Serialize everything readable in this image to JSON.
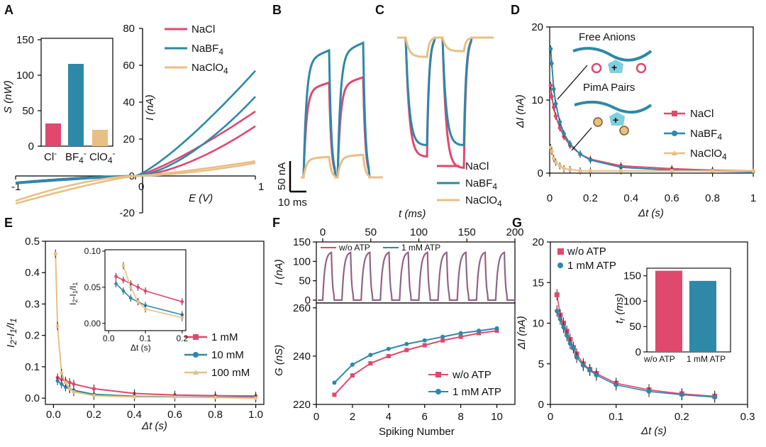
{
  "colors": {
    "red": "#e0486e",
    "blue": "#2e88a8",
    "tan": "#e8bf85"
  },
  "panel_labels": {
    "A": "A",
    "B": "B",
    "C": "C",
    "D": "D",
    "E": "E",
    "F": "F",
    "G": "G"
  },
  "chart_data": [
    {
      "id": "A",
      "type": "line",
      "xlabel": "E (V)",
      "ylabel": "I (nA)",
      "xlim": [
        -1,
        1
      ],
      "ylim": [
        -20,
        80
      ],
      "xticks": [
        "-1",
        "0",
        "1"
      ],
      "yticks": [
        "-20",
        "0",
        "20",
        "40",
        "60",
        "80"
      ],
      "series": [
        {
          "name": "NaCl",
          "color": "red",
          "upper_end": 35,
          "lower_end": 27,
          "neg_end": -4
        },
        {
          "name": "NaBF4",
          "color": "blue",
          "upper_end": 57,
          "lower_end": 43,
          "neg_end": -4
        },
        {
          "name": "NaClO4",
          "color": "tan",
          "upper_end": 8,
          "lower_end": 7,
          "neg_end": -15
        }
      ],
      "legend": [
        "NaCl",
        "NaBF",
        "NaClO"
      ]
    },
    {
      "id": "A-inset",
      "type": "bar",
      "ylabel": "S (nW)",
      "ylim": [
        0,
        150
      ],
      "yticks": [
        "0",
        "50",
        "100",
        "150"
      ],
      "categories": [
        "Cl",
        "BF",
        "ClO"
      ],
      "values": [
        32,
        116,
        23
      ],
      "colors": [
        "red",
        "blue",
        "tan"
      ]
    },
    {
      "id": "B",
      "type": "line",
      "scalebar_y": "50 nA",
      "scalebar_x": "10 ms",
      "series": [
        {
          "name": "NaCl",
          "color": "red",
          "peaks": [
            88,
            93
          ]
        },
        {
          "name": "NaBF4",
          "color": "blue",
          "peaks": [
            118,
            125
          ]
        },
        {
          "name": "NaClO4",
          "color": "tan",
          "peaks": [
            19,
            21
          ]
        }
      ]
    },
    {
      "id": "C",
      "type": "line",
      "legend": [
        "NaCl",
        "NaBF",
        "NaClO"
      ],
      "series": [
        {
          "name": "NaCl",
          "color": "red",
          "troughs": [
            -105,
            -115
          ]
        },
        {
          "name": "NaBF4",
          "color": "blue",
          "troughs": [
            -95,
            -95
          ]
        },
        {
          "name": "NaClO4",
          "color": "tan",
          "troughs": [
            -17,
            -12
          ]
        }
      ]
    },
    {
      "id": "D",
      "type": "line",
      "xlabel": "Δt (s)",
      "ylabel": "ΔI (nA)",
      "xlim": [
        0,
        1
      ],
      "ylim": [
        0,
        20
      ],
      "xticks": [
        "0",
        "0.2",
        "0.4",
        "0.6",
        "0.8",
        "1"
      ],
      "yticks": [
        "0",
        "10",
        "20"
      ],
      "annotations": [
        "Free Anions",
        "PimA Pairs"
      ],
      "series": [
        {
          "name": "NaCl",
          "color": "red",
          "x": [
            0.005,
            0.01,
            0.02,
            0.03,
            0.05,
            0.07,
            0.1,
            0.15,
            0.2,
            0.35,
            0.6,
            0.8,
            1.0
          ],
          "y": [
            12,
            10.5,
            9,
            7.8,
            6.2,
            5,
            3.8,
            2.6,
            1.9,
            1,
            0.6,
            0.4,
            0.3
          ]
        },
        {
          "name": "NaBF4",
          "color": "blue",
          "x": [
            0.005,
            0.01,
            0.02,
            0.03,
            0.05,
            0.07,
            0.1,
            0.15,
            0.2,
            0.35,
            0.6,
            0.8,
            1.0
          ],
          "y": [
            17,
            15,
            11.5,
            9.5,
            7,
            5.4,
            4,
            2.6,
            1.8,
            0.8,
            0.4,
            0.3,
            0.2
          ]
        },
        {
          "name": "NaClO4",
          "color": "tan",
          "x": [
            0.005,
            0.01,
            0.02,
            0.03,
            0.05,
            0.07,
            0.1,
            0.15,
            0.2,
            0.35,
            0.6,
            0.8,
            1.0
          ],
          "y": [
            3.5,
            3,
            2,
            1.5,
            1,
            0.6,
            0.5,
            0.3,
            0.3,
            0.3,
            0.3,
            0.3,
            0.3
          ]
        }
      ],
      "legend": [
        "NaCl",
        "NaBF",
        "NaClO"
      ]
    },
    {
      "id": "E",
      "type": "line",
      "xlabel": "Δt (s)",
      "ylabel": "I2-I1/I1",
      "xlim": [
        0,
        1
      ],
      "ylim": [
        0,
        0.5
      ],
      "xticks": [
        "0.0",
        "0.2",
        "0.4",
        "0.6",
        "0.8",
        "1.0"
      ],
      "yticks": [
        "0.0",
        "0.1",
        "0.2",
        "0.3",
        "0.4",
        "0.5"
      ],
      "series": [
        {
          "name": "1 mM",
          "color": "red",
          "x": [
            0.02,
            0.04,
            0.06,
            0.08,
            0.1,
            0.2,
            0.4,
            0.6,
            0.8,
            1.0
          ],
          "y": [
            0.065,
            0.06,
            0.055,
            0.05,
            0.045,
            0.03,
            0.015,
            0.01,
            0.008,
            0.007
          ]
        },
        {
          "name": "10 mM",
          "color": "blue",
          "x": [
            0.02,
            0.04,
            0.06,
            0.08,
            0.1,
            0.2,
            0.4,
            0.6,
            0.8,
            1.0
          ],
          "y": [
            0.055,
            0.045,
            0.035,
            0.03,
            0.025,
            0.012,
            0.006,
            0.004,
            0.003,
            0.002
          ]
        },
        {
          "name": "100 mM",
          "color": "tan",
          "x": [
            0.01,
            0.02,
            0.04,
            0.06,
            0.08,
            0.1,
            0.2,
            0.4,
            0.6,
            0.8,
            1.0
          ],
          "y": [
            0.46,
            0.23,
            0.08,
            0.05,
            0.03,
            0.02,
            0.008,
            0.004,
            0.003,
            0.002,
            0.0
          ]
        }
      ],
      "legend": [
        "1 mM",
        "10 mM",
        "100 mM"
      ],
      "inset": {
        "xticks": [
          "0.0",
          "0.1",
          "0.2"
        ],
        "yticks": [
          "0.00",
          "0.05",
          "0.10"
        ],
        "xlabel": "Δt (s)",
        "ylabel": "I2-I1/I1"
      }
    },
    {
      "id": "F-top",
      "type": "line",
      "xlabel": "t (ms)",
      "ylabel": "I (nA)",
      "xlim": [
        0,
        200
      ],
      "ylim": [
        0,
        150
      ],
      "xticks": [
        "0",
        "50",
        "100",
        "150",
        "200"
      ],
      "yticks": [
        "0",
        "50",
        "100",
        "150"
      ],
      "series": [
        {
          "name": "w/o ATP",
          "color": "red",
          "period_ms": 20,
          "amplitude": 125
        },
        {
          "name": "1 mM ATP",
          "color": "blue",
          "period_ms": 20,
          "amplitude": 125
        }
      ]
    },
    {
      "id": "F-bottom",
      "type": "line",
      "xlabel": "Spiking Number",
      "ylabel": "G (nS)",
      "xlim": [
        0,
        11
      ],
      "ylim": [
        220,
        260
      ],
      "xticks": [
        "0",
        "2",
        "4",
        "6",
        "8",
        "10"
      ],
      "yticks": [
        "220",
        "240",
        "260"
      ],
      "series": [
        {
          "name": "w/o ATP",
          "color": "red",
          "x": [
            1,
            2,
            3,
            4,
            5,
            6,
            7,
            8,
            9,
            10
          ],
          "y": [
            224,
            232,
            237,
            240,
            242.5,
            244.5,
            246.5,
            248,
            249.5,
            250.5
          ]
        },
        {
          "name": "1 mM ATP",
          "color": "blue",
          "x": [
            1,
            2,
            3,
            4,
            5,
            6,
            7,
            8,
            9,
            10
          ],
          "y": [
            229,
            236.5,
            240.5,
            243,
            245,
            246.5,
            248,
            249.5,
            250.5,
            251.5
          ]
        }
      ]
    },
    {
      "id": "G",
      "type": "scatter",
      "xlabel": "Δt (s)",
      "ylabel": "ΔI (nA)",
      "xlim": [
        0,
        0.3
      ],
      "ylim": [
        0,
        20
      ],
      "xticks": [
        "0",
        "0.1",
        "0.2",
        "0.3"
      ],
      "yticks": [
        "0",
        "5",
        "10",
        "15",
        "20"
      ],
      "series": [
        {
          "name": "w/o ATP",
          "color": "red",
          "x": [
            0.01,
            0.015,
            0.02,
            0.025,
            0.03,
            0.035,
            0.04,
            0.05,
            0.06,
            0.07,
            0.1,
            0.15,
            0.2,
            0.25
          ],
          "y": [
            13.5,
            11,
            10,
            9,
            8,
            7,
            6.2,
            5,
            4.3,
            3.8,
            2.6,
            1.8,
            1.3,
            1
          ]
        },
        {
          "name": "1 mM ATP",
          "color": "blue",
          "x": [
            0.01,
            0.015,
            0.02,
            0.025,
            0.03,
            0.035,
            0.04,
            0.05,
            0.06,
            0.07,
            0.1,
            0.15,
            0.2,
            0.25
          ],
          "y": [
            11.5,
            10.5,
            9.5,
            8.5,
            7.5,
            7,
            5.8,
            4.8,
            4.2,
            3.6,
            2.4,
            1.6,
            1.2,
            0.9
          ]
        }
      ],
      "inset": {
        "type": "bar",
        "ylabel": "tr (ms)",
        "ylim": [
          0,
          160
        ],
        "yticks": [
          "0",
          "50",
          "100",
          "150"
        ],
        "categories": [
          "w/o ATP",
          "1 mM ATP"
        ],
        "values": [
          160,
          140
        ],
        "colors": [
          "red",
          "blue"
        ]
      }
    }
  ],
  "text": {
    "a_legend": [
      "NaCl",
      "NaBF",
      "NaClO"
    ],
    "a_legend_sub": [
      "",
      "4",
      "4"
    ],
    "a_inset_ylabel": "S (nW)",
    "a_inset_cats": [
      "Cl",
      "BF",
      "ClO"
    ],
    "a_inset_cats_sub": [
      "",
      "4",
      "4"
    ],
    "a_inset_yt": [
      "0",
      "50",
      "100",
      "150"
    ],
    "a_yt": [
      "-20",
      "0",
      "20",
      "40",
      "60",
      "80"
    ],
    "a_xt": [
      "-1",
      "0",
      "1"
    ],
    "a_xlabel": "E (V)",
    "a_ylabel": "I (nA)",
    "b_scale_y": "50 nA",
    "b_scale_x": "10 ms",
    "c_legend": [
      "NaCl",
      "NaBF",
      "NaClO"
    ],
    "d_yt": [
      "0",
      "10",
      "20"
    ],
    "d_xt": [
      "0",
      "0.2",
      "0.4",
      "0.6",
      "0.8",
      "1"
    ],
    "d_xlabel": "Δt (s)",
    "d_ylabel": "ΔI (nA)",
    "d_free": "Free Anions",
    "d_pima": "PimA Pairs",
    "d_legend": [
      "NaCl",
      "NaBF",
      "NaClO"
    ],
    "e_yt": [
      "0.0",
      "0.1",
      "0.2",
      "0.3",
      "0.4",
      "0.5"
    ],
    "e_xt": [
      "0.0",
      "0.2",
      "0.4",
      "0.6",
      "0.8",
      "1.0"
    ],
    "e_xlabel": "Δt (s)",
    "e_ylabel": "I",
    "e_legend": [
      "1 mM",
      "10 mM",
      "100 mM"
    ],
    "e_in_yt": [
      "0.00",
      "0.05",
      "0.10"
    ],
    "e_in_xt": [
      "0.0",
      "0.1",
      "0.2"
    ],
    "e_in_xlabel": "Δt (s)",
    "f_top_xt": [
      "0",
      "50",
      "100",
      "150",
      "200"
    ],
    "f_top_xlabel": "t (ms)",
    "f_top_yt": [
      "0",
      "50",
      "100",
      "150"
    ],
    "f_top_ylabel": "I (nA)",
    "f_top_legend": [
      "w/o ATP",
      "1 mM ATP"
    ],
    "f_bot_yt": [
      "220",
      "240",
      "260"
    ],
    "f_bot_xt": [
      "0",
      "2",
      "4",
      "6",
      "8",
      "10"
    ],
    "f_bot_xlabel": "Spiking Number",
    "f_bot_ylabel": "G (nS)",
    "f_bot_legend": [
      "w/o ATP",
      "1 mM ATP"
    ],
    "g_yt": [
      "0",
      "5",
      "10",
      "15",
      "20"
    ],
    "g_xt": [
      "0",
      "0.1",
      "0.2",
      "0.3"
    ],
    "g_xlabel": "Δt (s)",
    "g_ylabel": "ΔI (nA)",
    "g_legend": [
      "w/o ATP",
      "1 mM ATP"
    ],
    "g_in_yt": [
      "0",
      "50",
      "100",
      "150"
    ],
    "g_in_cats": [
      "w/o ATP",
      "1 mM ATP"
    ],
    "g_in_ylabel": "t"
  }
}
